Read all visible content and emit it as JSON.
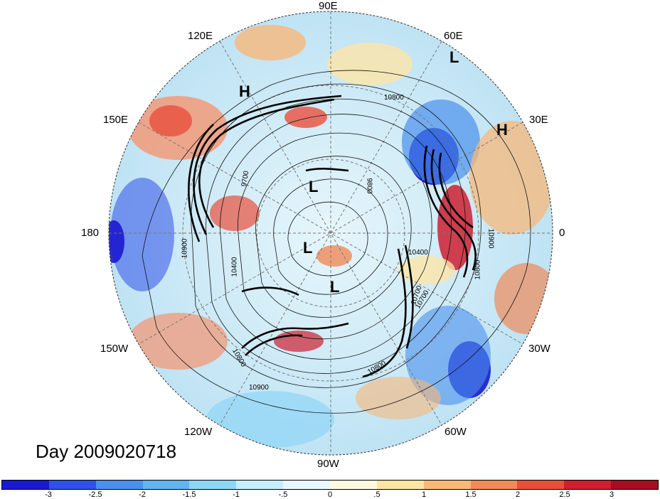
{
  "map": {
    "longitude_labels": [
      {
        "id": "lon-90e",
        "text": "90E"
      },
      {
        "id": "lon-60e",
        "text": "60E"
      },
      {
        "id": "lon-120e",
        "text": "120E"
      },
      {
        "id": "lon-150e",
        "text": "150E"
      },
      {
        "id": "lon-30e",
        "text": "30E"
      },
      {
        "id": "lon-180",
        "text": "180"
      },
      {
        "id": "lon-0",
        "text": "0"
      },
      {
        "id": "lon-150w",
        "text": "150W"
      },
      {
        "id": "lon-30w",
        "text": "30W"
      },
      {
        "id": "lon-120w",
        "text": "120W"
      },
      {
        "id": "lon-60w",
        "text": "60W"
      },
      {
        "id": "lon-90w",
        "text": "90W"
      }
    ],
    "pressure_centers": [
      "H",
      "L",
      "H",
      "L",
      "L",
      "L"
    ],
    "contour_labels": [
      "10800",
      "10900",
      "10700",
      "10800",
      "10400",
      "9800",
      "10900",
      "10800",
      "10700",
      "10800",
      "10900",
      "10400",
      "9700"
    ]
  },
  "title": {
    "text": "Day 2009020718"
  },
  "colorbar": {
    "colors": [
      "#1a1acd",
      "#3050e8",
      "#4a90ec",
      "#64b4f0",
      "#8fd6f6",
      "#c6eefc",
      "#eaf9ff",
      "#fffbe0",
      "#fde5a8",
      "#f7b87a",
      "#f08a5a",
      "#e8503c",
      "#cc2030",
      "#a50d20"
    ],
    "ticks": [
      "-3",
      "-2.5",
      "-2",
      "-1.5",
      "-1",
      "-.5",
      "0",
      ".5",
      "1",
      "1.5",
      "2",
      "2.5",
      "3"
    ]
  }
}
